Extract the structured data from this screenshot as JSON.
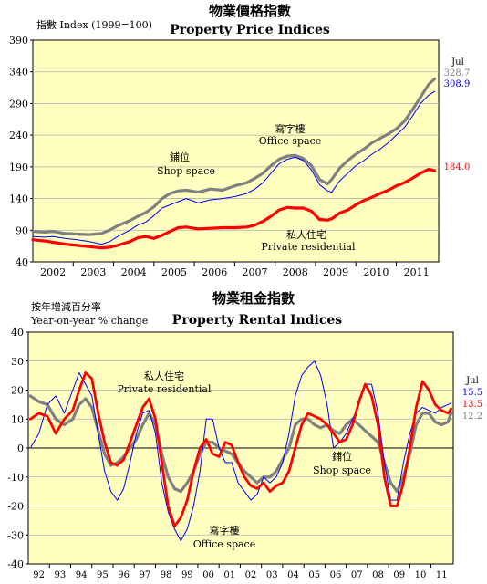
{
  "chart_data": [
    {
      "type": "line",
      "title_zh": "物業價格指數",
      "title": "Property Price Indices",
      "ylabel": "指數 Index (1999=100)",
      "ylim": [
        40,
        390
      ],
      "yticks": [
        40,
        90,
        140,
        190,
        240,
        290,
        340,
        390
      ],
      "xlim": [
        2001.5,
        2011.55
      ],
      "xticks": [
        2002,
        2003,
        2004,
        2005,
        2006,
        2007,
        2008,
        2009,
        2010,
        2011
      ],
      "xtick_labels": [
        "2002",
        "2003",
        "2004",
        "2005",
        "2006",
        "2007",
        "2008",
        "2009",
        "2010",
        "2011"
      ],
      "plot_bg": "#ffffc0",
      "latest_label": "Jul",
      "series": [
        {
          "name": "鋪位 Shop space",
          "label_zh": "鋪位",
          "label_en": "Shop space",
          "color": "#808080",
          "latest_value": "328.7",
          "x": [
            2001.5,
            2001.8,
            2002.0,
            2002.3,
            2002.6,
            2002.9,
            2003.2,
            2003.4,
            2003.6,
            2003.9,
            2004.1,
            2004.3,
            2004.5,
            2004.7,
            2004.9,
            2005.1,
            2005.3,
            2005.6,
            2005.9,
            2006.2,
            2006.5,
            2006.8,
            2007.0,
            2007.2,
            2007.4,
            2007.6,
            2007.8,
            2008.0,
            2008.2,
            2008.4,
            2008.6,
            2008.8,
            2008.9,
            2009.1,
            2009.3,
            2009.5,
            2009.7,
            2009.9,
            2010.1,
            2010.3,
            2010.5,
            2010.7,
            2010.9,
            2011.1,
            2011.3,
            2011.45
          ],
          "y": [
            88,
            87,
            88,
            85,
            84,
            83,
            85,
            90,
            97,
            105,
            112,
            118,
            127,
            140,
            148,
            152,
            153,
            150,
            155,
            153,
            160,
            165,
            172,
            180,
            192,
            202,
            207,
            208,
            203,
            192,
            170,
            163,
            170,
            188,
            200,
            210,
            218,
            228,
            235,
            242,
            250,
            262,
            280,
            300,
            320,
            329
          ]
        },
        {
          "name": "寫字樓 Office space",
          "label_zh": "寫字樓",
          "label_en": "Office space",
          "color": "#0000ff",
          "latest_value": "308.9",
          "x": [
            2001.5,
            2001.8,
            2002.0,
            2002.3,
            2002.6,
            2002.9,
            2003.2,
            2003.4,
            2003.6,
            2003.9,
            2004.1,
            2004.3,
            2004.5,
            2004.7,
            2004.9,
            2005.1,
            2005.3,
            2005.6,
            2005.9,
            2006.2,
            2006.5,
            2006.8,
            2007.0,
            2007.2,
            2007.4,
            2007.6,
            2007.8,
            2008.0,
            2008.2,
            2008.4,
            2008.6,
            2008.8,
            2008.9,
            2009.1,
            2009.3,
            2009.5,
            2009.7,
            2009.9,
            2010.1,
            2010.3,
            2010.5,
            2010.7,
            2010.9,
            2011.1,
            2011.3,
            2011.45
          ],
          "y": [
            80,
            79,
            80,
            77,
            75,
            72,
            68,
            72,
            80,
            90,
            98,
            103,
            113,
            125,
            130,
            135,
            140,
            133,
            138,
            140,
            143,
            148,
            155,
            165,
            180,
            195,
            202,
            205,
            200,
            185,
            162,
            152,
            150,
            168,
            180,
            192,
            200,
            210,
            218,
            228,
            240,
            252,
            270,
            290,
            303,
            309
          ]
        },
        {
          "name": "私人住宅 Private residential",
          "label_zh": "私人住宅",
          "label_en": "Private residential",
          "color": "#ff0000",
          "latest_value": "184.0",
          "x": [
            2001.5,
            2001.8,
            2002.0,
            2002.3,
            2002.6,
            2002.9,
            2003.2,
            2003.4,
            2003.6,
            2003.9,
            2004.1,
            2004.3,
            2004.5,
            2004.7,
            2004.9,
            2005.1,
            2005.3,
            2005.6,
            2005.9,
            2006.2,
            2006.5,
            2006.8,
            2007.0,
            2007.2,
            2007.4,
            2007.6,
            2007.8,
            2008.0,
            2008.2,
            2008.4,
            2008.6,
            2008.8,
            2008.9,
            2009.1,
            2009.3,
            2009.5,
            2009.7,
            2009.9,
            2010.1,
            2010.3,
            2010.5,
            2010.7,
            2010.9,
            2011.1,
            2011.3,
            2011.45
          ],
          "y": [
            75,
            73,
            71,
            68,
            66,
            64,
            62,
            63,
            66,
            72,
            78,
            80,
            77,
            82,
            88,
            94,
            95,
            92,
            93,
            94,
            94,
            95,
            98,
            104,
            112,
            122,
            126,
            125,
            125,
            120,
            107,
            106,
            108,
            117,
            122,
            130,
            137,
            142,
            148,
            153,
            160,
            165,
            172,
            180,
            186,
            184
          ]
        }
      ]
    },
    {
      "type": "line",
      "title_zh": "物業租金指數",
      "title": "Property Rental Indices",
      "ylabel_zh": "按年增減百分率",
      "ylabel": "Year-on-year % change",
      "ylim": [
        -40,
        40
      ],
      "yticks": [
        -40,
        -30,
        -20,
        -10,
        0,
        10,
        20,
        30,
        40
      ],
      "xlim": [
        1991.5,
        2011.55
      ],
      "xticks": [
        1992,
        1993,
        1994,
        1995,
        1996,
        1997,
        1998,
        1999,
        2000,
        2001,
        2002,
        2003,
        2004,
        2005,
        2006,
        2007,
        2008,
        2009,
        2010,
        2011
      ],
      "xtick_labels": [
        "92",
        "93",
        "94",
        "95",
        "96",
        "97",
        "98",
        "99",
        "00",
        "01",
        "02",
        "03",
        "04",
        "05",
        "06",
        "07",
        "08",
        "09",
        "10",
        "11"
      ],
      "plot_bg": "#ffffc0",
      "latest_label": "Jul",
      "series": [
        {
          "name": "私人住宅 Private residential",
          "label_zh": "私人住宅",
          "label_en": "Private residential",
          "color": "#ff0000",
          "latest_value": "13.5",
          "x": [
            1991.6,
            1992.0,
            1992.4,
            1992.8,
            1993.2,
            1993.6,
            1993.9,
            1994.2,
            1994.5,
            1994.8,
            1995.1,
            1995.4,
            1995.7,
            1996.0,
            1996.3,
            1996.6,
            1996.9,
            1997.2,
            1997.5,
            1997.8,
            1998.1,
            1998.4,
            1998.7,
            1999.0,
            1999.3,
            1999.6,
            1999.9,
            2000.2,
            2000.5,
            2000.8,
            2001.1,
            2001.4,
            2001.7,
            2002.0,
            2002.3,
            2002.6,
            2002.9,
            2003.2,
            2003.5,
            2003.8,
            2004.1,
            2004.4,
            2004.7,
            2005.0,
            2005.3,
            2005.6,
            2005.9,
            2006.2,
            2006.5,
            2006.8,
            2007.1,
            2007.4,
            2007.7,
            2008.0,
            2008.3,
            2008.6,
            2008.9,
            2009.2,
            2009.5,
            2009.8,
            2010.1,
            2010.4,
            2010.7,
            2011.0,
            2011.3,
            2011.45
          ],
          "y": [
            10,
            12,
            11,
            5,
            10,
            13,
            20,
            26,
            24,
            12,
            2,
            -5,
            -6,
            -4,
            2,
            8,
            14,
            17,
            10,
            -5,
            -20,
            -27,
            -24,
            -18,
            -8,
            0,
            3,
            -2,
            -3,
            2,
            1,
            -5,
            -10,
            -13,
            -14,
            -12,
            -15,
            -13,
            -12,
            -8,
            0,
            8,
            12,
            11,
            10,
            8,
            5,
            2,
            3,
            8,
            16,
            22,
            18,
            8,
            -10,
            -20,
            -20,
            -12,
            0,
            14,
            23,
            20,
            15,
            13,
            12,
            13.5
          ]
        },
        {
          "name": "寫字樓 Office space",
          "label_zh": "寫字樓",
          "label_en": "Office space",
          "color": "#0000ff",
          "latest_value": "15.5",
          "x": [
            1991.6,
            1992.0,
            1992.4,
            1992.8,
            1993.2,
            1993.6,
            1993.9,
            1994.2,
            1994.5,
            1994.8,
            1995.1,
            1995.4,
            1995.7,
            1996.0,
            1996.3,
            1996.6,
            1996.9,
            1997.2,
            1997.5,
            1997.8,
            1998.1,
            1998.4,
            1998.7,
            1999.0,
            1999.3,
            1999.6,
            1999.9,
            2000.2,
            2000.5,
            2000.8,
            2001.1,
            2001.4,
            2001.7,
            2002.0,
            2002.3,
            2002.6,
            2002.9,
            2003.2,
            2003.5,
            2003.8,
            2004.1,
            2004.4,
            2004.7,
            2005.0,
            2005.3,
            2005.6,
            2005.9,
            2006.2,
            2006.5,
            2006.8,
            2007.1,
            2007.4,
            2007.7,
            2008.0,
            2008.3,
            2008.6,
            2008.9,
            2009.2,
            2009.5,
            2009.8,
            2010.1,
            2010.4,
            2010.7,
            2011.0,
            2011.3,
            2011.45
          ],
          "y": [
            0,
            5,
            15,
            18,
            12,
            20,
            26,
            22,
            18,
            5,
            -8,
            -15,
            -18,
            -14,
            -5,
            5,
            12,
            13,
            5,
            -12,
            -22,
            -28,
            -32,
            -28,
            -20,
            -8,
            10,
            10,
            0,
            -5,
            -5,
            -12,
            -15,
            -18,
            -16,
            -10,
            -12,
            -10,
            -5,
            5,
            18,
            25,
            28,
            30,
            25,
            15,
            0,
            2,
            5,
            10,
            15,
            22,
            22,
            12,
            -5,
            -18,
            -18,
            -5,
            5,
            12,
            14,
            13,
            12,
            14,
            15,
            15.5
          ]
        },
        {
          "name": "鋪位 Shop space",
          "label_zh": "鋪位",
          "label_en": "Shop space",
          "color": "#808080",
          "latest_value": "12.2",
          "x": [
            1991.6,
            1992.0,
            1992.4,
            1992.8,
            1993.2,
            1993.6,
            1993.9,
            1994.2,
            1994.5,
            1994.8,
            1995.1,
            1995.4,
            1995.7,
            1996.0,
            1996.3,
            1996.6,
            1996.9,
            1997.2,
            1997.5,
            1997.8,
            1998.1,
            1998.4,
            1998.7,
            1999.0,
            1999.3,
            1999.6,
            1999.9,
            2000.2,
            2000.5,
            2000.8,
            2001.1,
            2001.4,
            2001.7,
            2002.0,
            2002.3,
            2002.6,
            2002.9,
            2003.2,
            2003.5,
            2003.8,
            2004.1,
            2004.4,
            2004.7,
            2005.0,
            2005.3,
            2005.6,
            2005.9,
            2006.2,
            2006.5,
            2006.8,
            2007.1,
            2007.4,
            2007.7,
            2008.0,
            2008.3,
            2008.6,
            2008.9,
            2009.2,
            2009.5,
            2009.8,
            2010.1,
            2010.4,
            2010.7,
            2011.0,
            2011.3,
            2011.45
          ],
          "y": [
            18,
            16,
            15,
            10,
            8,
            10,
            15,
            17,
            14,
            6,
            -2,
            -6,
            -5,
            -3,
            0,
            3,
            8,
            12,
            8,
            -2,
            -10,
            -14,
            -15,
            -12,
            -8,
            -2,
            2,
            2,
            0,
            -1,
            -2,
            -5,
            -8,
            -10,
            -12,
            -10,
            -10,
            -8,
            -4,
            0,
            8,
            10,
            10,
            8,
            7,
            8,
            6,
            5,
            8,
            10,
            8,
            6,
            4,
            2,
            -5,
            -12,
            -15,
            -10,
            -2,
            8,
            12,
            12,
            9,
            8,
            9,
            12.2
          ]
        }
      ]
    }
  ]
}
